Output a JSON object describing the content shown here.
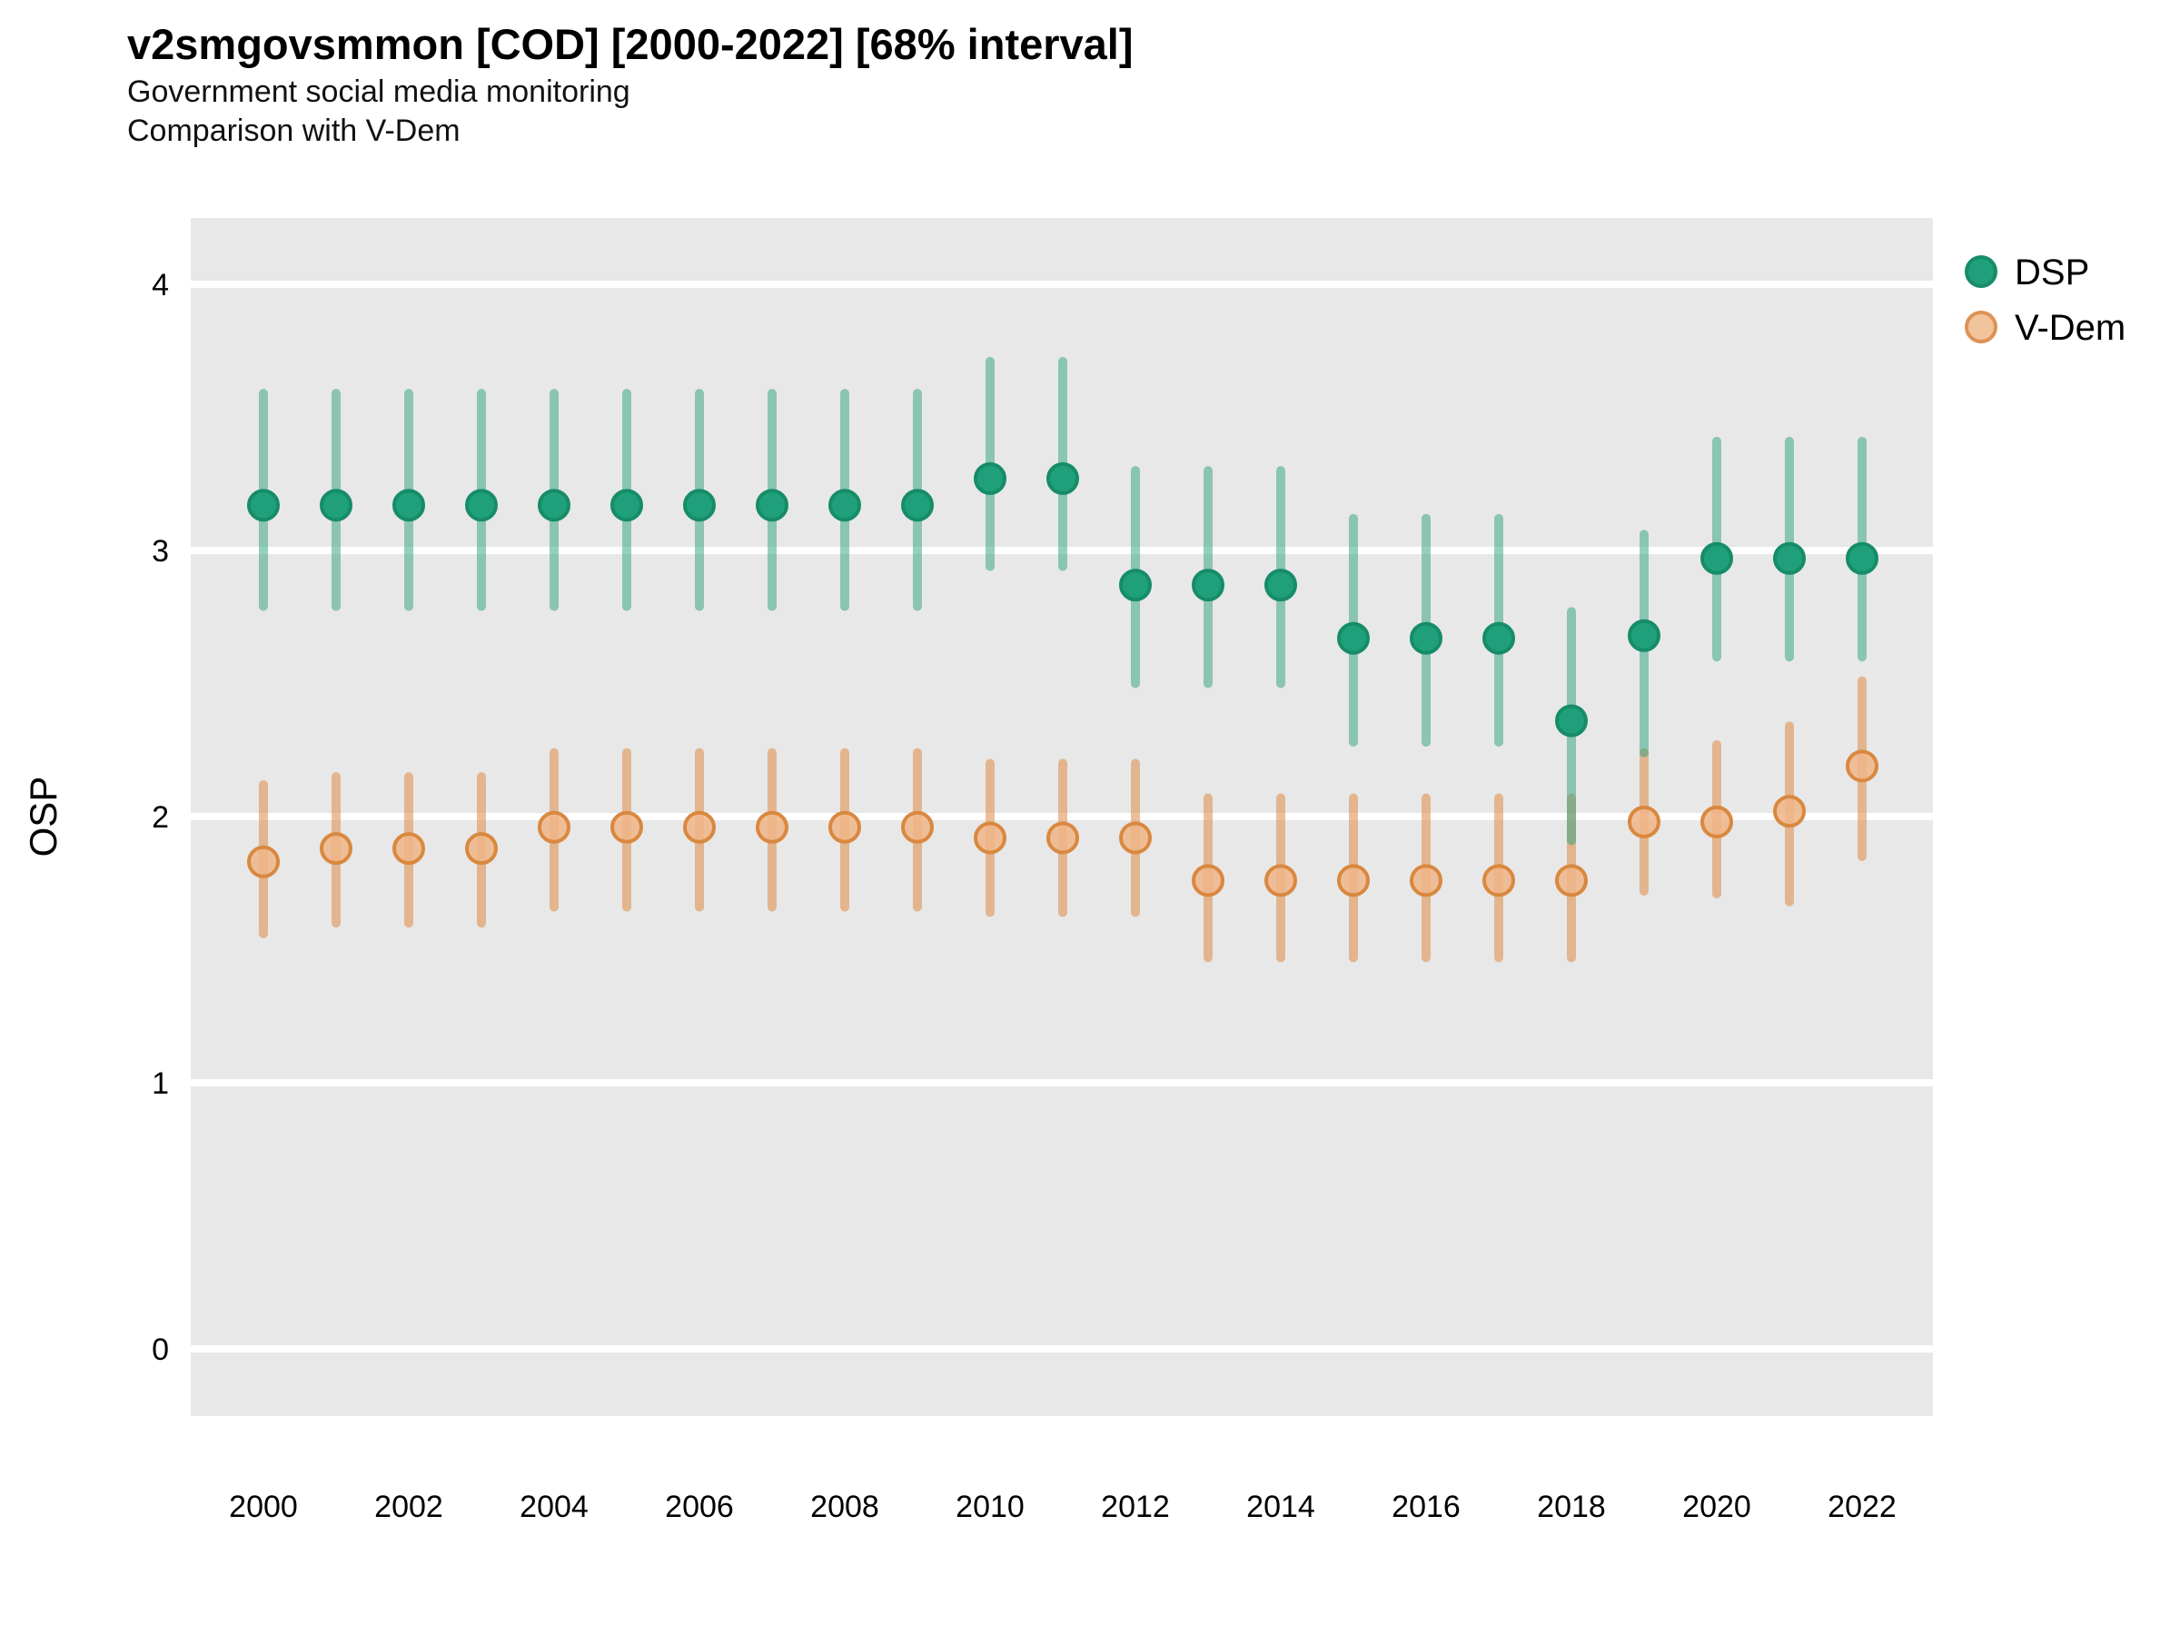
{
  "header": {
    "title": "v2smgovsmmon [COD] [2000-2022] [68% interval]",
    "subtitle": "Government social media monitoring",
    "subtitle2": "Comparison with V-Dem"
  },
  "axes": {
    "y_label": "OSP",
    "y_ticks": [
      4,
      3,
      2,
      1,
      0
    ],
    "x_ticks": [
      2000,
      2002,
      2004,
      2006,
      2008,
      2010,
      2012,
      2014,
      2016,
      2018,
      2020,
      2022
    ]
  },
  "legend": {
    "entries": [
      {
        "label": "DSP"
      },
      {
        "label": "V-Dem"
      }
    ]
  },
  "colors": {
    "panel_bg": "#e8e8e8",
    "gridline": "#ffffff",
    "dsp_point_fill": "#1fa07a",
    "dsp_point_stroke": "#168c68",
    "dsp_bar": "rgba(42,162,124,0.5)",
    "vdem_point_fill": "#eeb587",
    "vdem_point_stroke": "#d9883f",
    "vdem_bar": "rgba(222,138,70,0.55)",
    "legend_dsp_fill": "#1fa07a",
    "legend_dsp_stroke": "#168c68",
    "legend_vdem_fill": "#f2c49c",
    "legend_vdem_stroke": "#df9255",
    "text": "#000000"
  },
  "chart_data": {
    "type": "scatter",
    "subtype": "pointrange",
    "title": "v2smgovsmmon [COD] [2000-2022] [68% interval]",
    "subtitle": "Government social media monitoring",
    "subtitle2": "Comparison with V-Dem",
    "xlabel": "",
    "ylabel": "OSP",
    "interval": "68%",
    "xlim": [
      1999,
      2023
    ],
    "ylim": [
      -0.25,
      4.25
    ],
    "grid": "major-horizontal-only",
    "legend_position": "top-right-outside",
    "x": [
      2000,
      2001,
      2002,
      2003,
      2004,
      2005,
      2006,
      2007,
      2008,
      2009,
      2010,
      2011,
      2012,
      2013,
      2014,
      2015,
      2016,
      2017,
      2018,
      2019,
      2020,
      2021,
      2022
    ],
    "series": [
      {
        "name": "DSP",
        "values": [
          3.17,
          3.17,
          3.17,
          3.17,
          3.17,
          3.17,
          3.17,
          3.17,
          3.17,
          3.17,
          3.27,
          3.27,
          2.87,
          2.87,
          2.87,
          2.67,
          2.67,
          2.67,
          2.36,
          2.68,
          2.97,
          2.97,
          2.97
        ],
        "lower": [
          2.79,
          2.79,
          2.79,
          2.79,
          2.79,
          2.79,
          2.79,
          2.79,
          2.79,
          2.79,
          2.94,
          2.94,
          2.5,
          2.5,
          2.5,
          2.28,
          2.28,
          2.28,
          1.91,
          2.24,
          2.6,
          2.6,
          2.6
        ],
        "upper": [
          3.59,
          3.59,
          3.59,
          3.59,
          3.59,
          3.59,
          3.59,
          3.59,
          3.59,
          3.59,
          3.71,
          3.71,
          3.3,
          3.3,
          3.3,
          3.12,
          3.12,
          3.12,
          2.77,
          3.06,
          3.41,
          3.41,
          3.41
        ]
      },
      {
        "name": "V-Dem",
        "values": [
          1.83,
          1.88,
          1.88,
          1.88,
          1.96,
          1.96,
          1.96,
          1.96,
          1.96,
          1.96,
          1.92,
          1.92,
          1.92,
          1.76,
          1.76,
          1.76,
          1.76,
          1.76,
          1.76,
          1.98,
          1.98,
          2.02,
          2.19
        ],
        "lower": [
          1.56,
          1.6,
          1.6,
          1.6,
          1.66,
          1.66,
          1.66,
          1.66,
          1.66,
          1.66,
          1.64,
          1.64,
          1.64,
          1.47,
          1.47,
          1.47,
          1.47,
          1.47,
          1.47,
          1.72,
          1.71,
          1.68,
          1.85
        ],
        "upper": [
          2.12,
          2.15,
          2.15,
          2.15,
          2.24,
          2.24,
          2.24,
          2.24,
          2.24,
          2.24,
          2.2,
          2.2,
          2.2,
          2.07,
          2.07,
          2.07,
          2.07,
          2.07,
          2.07,
          2.24,
          2.27,
          2.34,
          2.51
        ]
      }
    ]
  }
}
